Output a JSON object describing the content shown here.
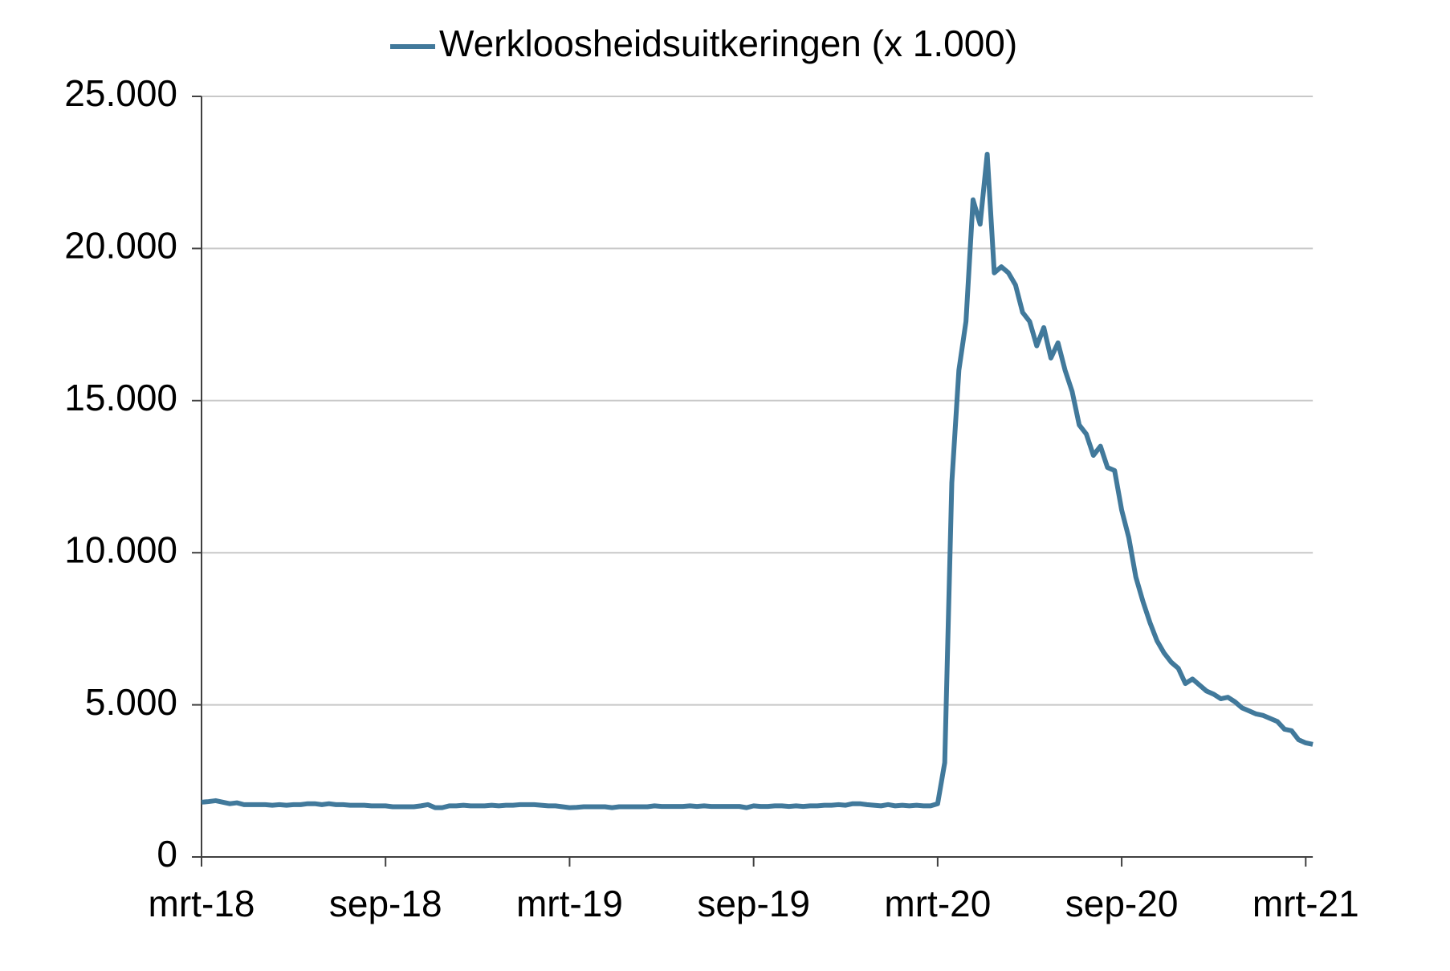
{
  "chart_data": {
    "type": "line",
    "categories": [
      "mrt-18",
      null,
      null,
      null,
      null,
      null,
      null,
      null,
      null,
      null,
      null,
      null,
      null,
      null,
      null,
      null,
      null,
      null,
      null,
      null,
      null,
      null,
      null,
      null,
      null,
      null,
      "sep-18",
      null,
      null,
      null,
      null,
      null,
      null,
      null,
      null,
      null,
      null,
      null,
      null,
      null,
      null,
      null,
      null,
      null,
      null,
      null,
      null,
      null,
      null,
      null,
      null,
      null,
      "mrt-19",
      null,
      null,
      null,
      null,
      null,
      null,
      null,
      null,
      null,
      null,
      null,
      null,
      null,
      null,
      null,
      null,
      null,
      null,
      null,
      null,
      null,
      null,
      null,
      null,
      null,
      "sep-19",
      null,
      null,
      null,
      null,
      null,
      null,
      null,
      null,
      null,
      null,
      null,
      null,
      null,
      null,
      null,
      null,
      null,
      null,
      null,
      null,
      null,
      null,
      null,
      null,
      null,
      "mrt-20",
      null,
      null,
      null,
      null,
      null,
      null,
      null,
      null,
      null,
      null,
      null,
      null,
      null,
      null,
      null,
      null,
      null,
      null,
      null,
      null,
      null,
      null,
      null,
      null,
      null,
      "sep-20",
      null,
      null,
      null,
      null,
      null,
      null,
      null,
      null,
      null,
      null,
      null,
      null,
      null,
      null,
      null,
      null,
      null,
      null,
      null,
      null,
      null,
      null,
      null,
      null,
      null,
      "mrt-21",
      null
    ],
    "series": [
      {
        "name": "Werkloosheidsuitkeringen (x 1.000)",
        "color": "#41799b",
        "values": [
          1800,
          1820,
          1850,
          1800,
          1750,
          1780,
          1720,
          1720,
          1720,
          1720,
          1700,
          1720,
          1700,
          1720,
          1720,
          1750,
          1750,
          1720,
          1750,
          1720,
          1720,
          1700,
          1700,
          1700,
          1680,
          1680,
          1680,
          1650,
          1650,
          1650,
          1650,
          1680,
          1720,
          1620,
          1620,
          1680,
          1680,
          1700,
          1680,
          1680,
          1680,
          1700,
          1680,
          1700,
          1700,
          1720,
          1720,
          1720,
          1700,
          1680,
          1680,
          1650,
          1620,
          1630,
          1650,
          1650,
          1650,
          1650,
          1620,
          1650,
          1650,
          1650,
          1650,
          1650,
          1680,
          1660,
          1660,
          1660,
          1660,
          1680,
          1660,
          1680,
          1660,
          1660,
          1660,
          1660,
          1660,
          1620,
          1680,
          1660,
          1660,
          1680,
          1680,
          1660,
          1680,
          1660,
          1680,
          1680,
          1700,
          1700,
          1720,
          1700,
          1750,
          1750,
          1720,
          1700,
          1680,
          1720,
          1680,
          1700,
          1680,
          1700,
          1680,
          1680,
          1750,
          3100,
          12300,
          16000,
          17600,
          21600,
          20800,
          23100,
          19200,
          19400,
          19200,
          18800,
          17900,
          17600,
          16800,
          17400,
          16400,
          16900,
          16000,
          15300,
          14200,
          13900,
          13200,
          13500,
          12800,
          12700,
          11400,
          10500,
          9200,
          8400,
          7700,
          7100,
          6700,
          6400,
          6200,
          5700,
          5850,
          5650,
          5450,
          5350,
          5200,
          5250,
          5100,
          4900,
          4800,
          4700,
          4650,
          4550,
          4450,
          4200,
          4150,
          3850,
          3750,
          3700
        ]
      }
    ],
    "ylim": [
      0,
      25000
    ],
    "yticks": [
      0,
      {
        "value": 5000,
        "label": "5.000"
      },
      {
        "value": 10000,
        "label": "10.000"
      },
      {
        "value": 15000,
        "label": "15.000"
      },
      {
        "value": 20000,
        "label": "20.000"
      },
      {
        "value": 25000,
        "label": "25.000"
      }
    ],
    "grid": true,
    "legend": "top"
  }
}
